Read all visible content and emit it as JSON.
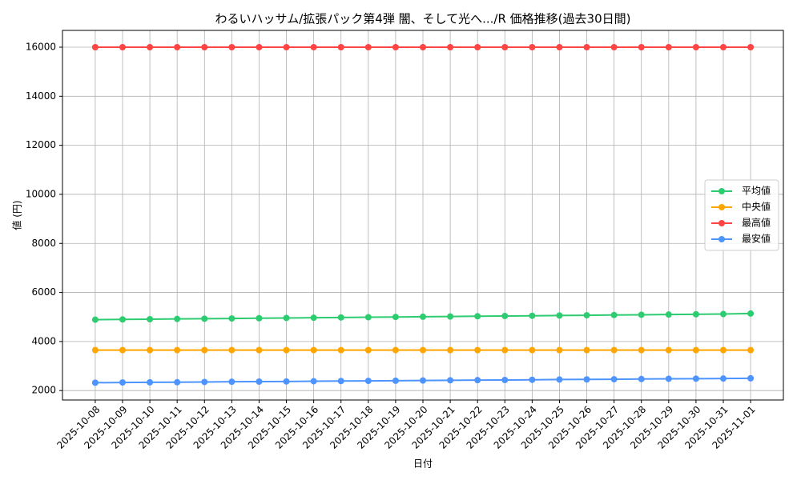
{
  "chart_data": {
    "type": "line",
    "title": "わるいハッサム/拡張パック第4弾 闇、そして光へ.../R 価格推移(過去30日間)",
    "x_label": "日付",
    "y_label": "値 (円)",
    "categories": [
      "2025-10-08",
      "2025-10-09",
      "2025-10-10",
      "2025-10-11",
      "2025-10-12",
      "2025-10-13",
      "2025-10-14",
      "2025-10-15",
      "2025-10-16",
      "2025-10-17",
      "2025-10-18",
      "2025-10-19",
      "2025-10-20",
      "2025-10-21",
      "2025-10-22",
      "2025-10-23",
      "2025-10-24",
      "2025-10-25",
      "2025-10-26",
      "2025-10-27",
      "2025-10-28",
      "2025-10-29",
      "2025-10-30",
      "2025-10-31",
      "2025-11-01"
    ],
    "series": [
      {
        "name": "平均値",
        "color": "#2ecc71",
        "values": [
          4890,
          4900,
          4910,
          4920,
          4930,
          4940,
          4950,
          4960,
          4970,
          4980,
          4990,
          5000,
          5010,
          5020,
          5030,
          5040,
          5050,
          5060,
          5070,
          5080,
          5090,
          5100,
          5110,
          5120,
          5140
        ]
      },
      {
        "name": "中央値",
        "color": "#ffa500",
        "values": [
          3650,
          3650,
          3650,
          3650,
          3650,
          3650,
          3650,
          3650,
          3650,
          3650,
          3650,
          3650,
          3650,
          3650,
          3650,
          3650,
          3650,
          3650,
          3650,
          3650,
          3650,
          3650,
          3650,
          3650,
          3650
        ]
      },
      {
        "name": "最高値",
        "color": "#ff4444",
        "values": [
          16000,
          16000,
          16000,
          16000,
          16000,
          16000,
          16000,
          16000,
          16000,
          16000,
          16000,
          16000,
          16000,
          16000,
          16000,
          16000,
          16000,
          16000,
          16000,
          16000,
          16000,
          16000,
          16000,
          16000,
          16000
        ]
      },
      {
        "name": "最安値",
        "color": "#4d94ff",
        "values": [
          2320,
          2330,
          2335,
          2340,
          2350,
          2360,
          2365,
          2370,
          2380,
          2390,
          2395,
          2400,
          2410,
          2420,
          2425,
          2430,
          2440,
          2450,
          2455,
          2460,
          2470,
          2480,
          2485,
          2490,
          2500
        ]
      }
    ],
    "ylim": [
      1615,
      16685
    ],
    "yticks": [
      2000,
      4000,
      6000,
      8000,
      10000,
      12000,
      14000,
      16000
    ],
    "grid": true,
    "legend": "right"
  }
}
